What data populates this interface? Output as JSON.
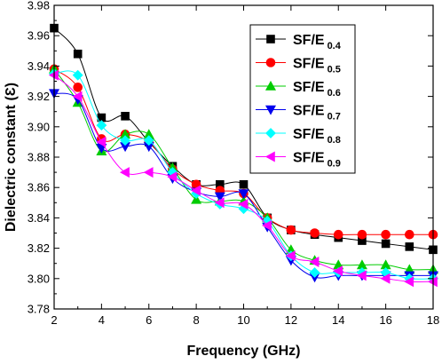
{
  "chart_data": {
    "type": "line",
    "title": "",
    "xlabel": "Frequency (GHz)",
    "ylabel": "Dielectric constant (Ɛ)",
    "xlim": [
      2,
      18
    ],
    "ylim": [
      3.78,
      3.98
    ],
    "xticks": [
      "2",
      "4",
      "6",
      "8",
      "10",
      "12",
      "14",
      "16",
      "18"
    ],
    "yticks": [
      "3.78",
      "3.80",
      "3.82",
      "3.84",
      "3.86",
      "3.88",
      "3.90",
      "3.92",
      "3.94",
      "3.96",
      "3.98"
    ],
    "legend_position": "top-right",
    "grid": false,
    "x": [
      2,
      3,
      4,
      5,
      6,
      7,
      8,
      9,
      10,
      11,
      12,
      13,
      14,
      15,
      16,
      17,
      18
    ],
    "series": [
      {
        "name": "SF/E",
        "sub": "0.4",
        "color": "#000000",
        "marker": "square",
        "values": [
          3.965,
          3.948,
          3.906,
          3.907,
          3.89,
          3.874,
          3.862,
          3.862,
          3.862,
          3.84,
          3.832,
          3.829,
          3.827,
          3.825,
          3.823,
          3.821,
          3.819
        ]
      },
      {
        "name": "SF/E",
        "sub": "0.5",
        "color": "#ff0000",
        "marker": "circle",
        "values": [
          3.938,
          3.926,
          3.892,
          3.895,
          3.89,
          3.872,
          3.862,
          3.858,
          3.856,
          3.84,
          3.832,
          3.83,
          3.829,
          3.829,
          3.829,
          3.829,
          3.829
        ]
      },
      {
        "name": "SF/E",
        "sub": "0.6",
        "color": "#00cc00",
        "marker": "triangle-up",
        "values": [
          3.938,
          3.916,
          3.884,
          3.895,
          3.895,
          3.873,
          3.852,
          3.851,
          3.851,
          3.84,
          3.819,
          3.812,
          3.809,
          3.809,
          3.809,
          3.806,
          3.806
        ]
      },
      {
        "name": "SF/E",
        "sub": "0.7",
        "color": "#0000ee",
        "marker": "triangle-down",
        "values": [
          3.922,
          3.918,
          3.886,
          3.887,
          3.887,
          3.866,
          3.857,
          3.854,
          3.856,
          3.834,
          3.812,
          3.801,
          3.802,
          3.802,
          3.802,
          3.802,
          3.802
        ]
      },
      {
        "name": "SF/E",
        "sub": "0.8",
        "color": "#00ffff",
        "marker": "diamond",
        "values": [
          3.935,
          3.934,
          3.901,
          3.891,
          3.891,
          3.87,
          3.856,
          3.849,
          3.846,
          3.838,
          3.815,
          3.804,
          3.804,
          3.804,
          3.804,
          3.8,
          3.8
        ]
      },
      {
        "name": "SF/E",
        "sub": "0.9",
        "color": "#ff00ff",
        "marker": "triangle-left",
        "values": [
          3.934,
          3.92,
          3.89,
          3.87,
          3.87,
          3.867,
          3.858,
          3.85,
          3.849,
          3.835,
          3.815,
          3.811,
          3.805,
          3.802,
          3.8,
          3.798,
          3.798
        ]
      }
    ]
  }
}
